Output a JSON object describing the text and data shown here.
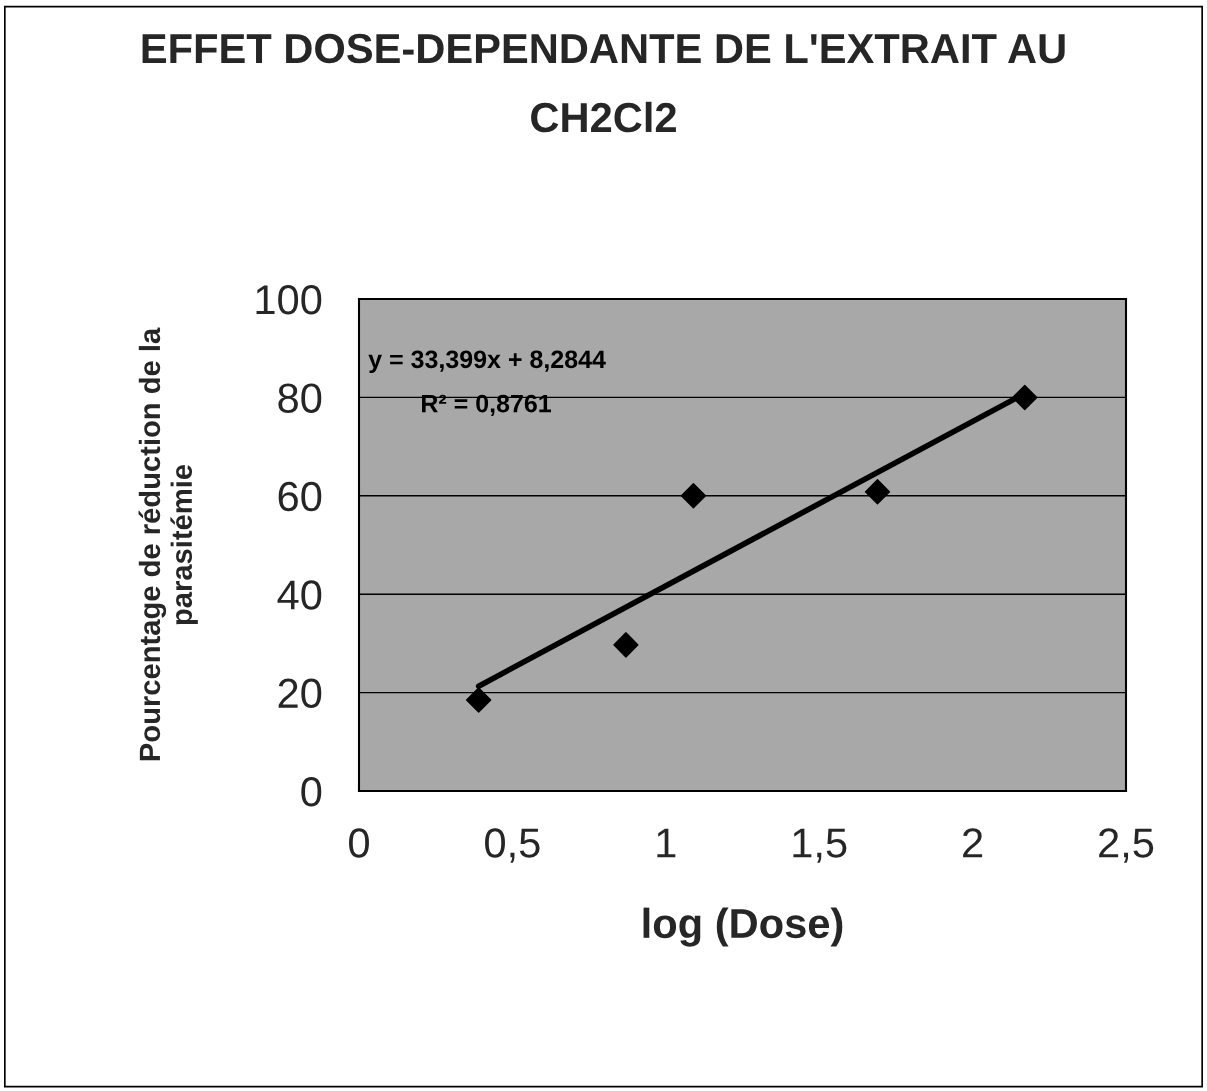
{
  "chart_data": {
    "type": "scatter",
    "title": "EFFET DOSE-DEPENDANTE DE L'EXTRAIT AU\nCH2Cl2",
    "xlabel": "log (Dose)",
    "ylabel": "Pourcentage de réduction de la\nparasitémie",
    "series": [
      {
        "color": "#000000",
        "marker": "diamond",
        "x": [
          0.39,
          0.87,
          1.09,
          1.69,
          2.17
        ],
        "values": [
          18.5,
          29.7,
          60,
          60.8,
          80
        ]
      },
      {
        "type": "line",
        "color": "#000000",
        "marker": "none",
        "line_style": "solid",
        "x": [
          0.39,
          2.17
        ],
        "values": [
          21.3,
          80.8
        ]
      }
    ],
    "annotations": [
      "y = 33,399x + 8,2844",
      "R² = 0,8761"
    ],
    "xlim": [
      0,
      2.5
    ],
    "xticks": [
      0,
      {
        "value": 0.5,
        "label": "0,5"
      },
      1,
      {
        "value": 1.5,
        "label": "1,5"
      },
      2,
      {
        "value": 2.5,
        "label": "2,5"
      }
    ],
    "ylim": [
      0,
      100
    ],
    "yticks": [
      0,
      20,
      40,
      60,
      80,
      100
    ],
    "grid": "y",
    "legend": false
  }
}
